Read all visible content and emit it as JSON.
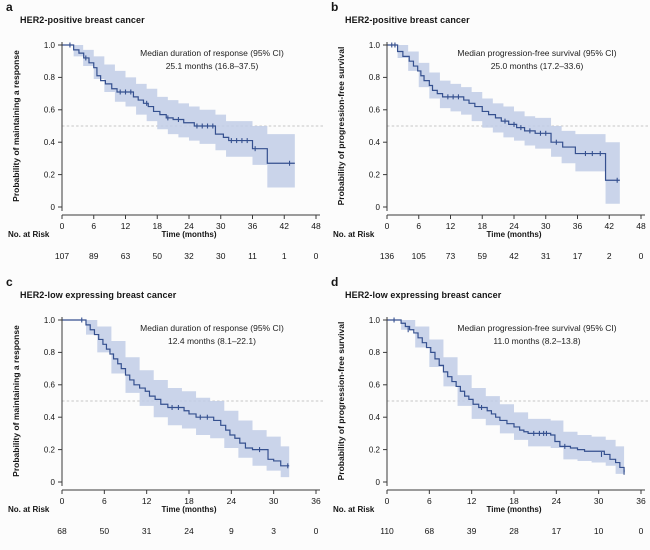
{
  "colors": {
    "line": "#35508f",
    "band": "#c1cde6",
    "dashed": "#c6c6c6",
    "axis": "#3a3a3a",
    "text": "#151515"
  },
  "chart_data": [
    {
      "type": "line",
      "letter": "a",
      "title": "HER2-positive breast cancer",
      "annotation_line1": "Median duration of response (95% CI)",
      "annotation_line2": "25.1 months (16.8–37.5)",
      "ylabel": "Probability of maintaining a response",
      "xlabel": "Time (months)",
      "risk_header": "No. at Risk",
      "y_ticks": [
        "1.0",
        "0.8",
        "0.6",
        "0.4",
        "0.2",
        "0"
      ],
      "ylim": [
        0,
        1.0
      ],
      "x_ticks": [
        0,
        6,
        12,
        18,
        24,
        30,
        36,
        42,
        48
      ],
      "xlim": [
        0,
        48
      ],
      "reference_line": 0.5,
      "at_risk": [
        107,
        89,
        63,
        50,
        32,
        30,
        11,
        1,
        0
      ],
      "steps": [
        [
          0,
          1.0
        ],
        [
          2.2,
          0.97
        ],
        [
          3.2,
          0.95
        ],
        [
          4.1,
          0.92
        ],
        [
          5.1,
          0.89
        ],
        [
          6.0,
          0.86
        ],
        [
          6.6,
          0.81
        ],
        [
          7.3,
          0.78
        ],
        [
          8.2,
          0.76
        ],
        [
          9.4,
          0.73
        ],
        [
          10.4,
          0.71
        ],
        [
          13.5,
          0.68
        ],
        [
          14.4,
          0.66
        ],
        [
          15.4,
          0.64
        ],
        [
          16.3,
          0.62
        ],
        [
          17.3,
          0.59
        ],
        [
          18.5,
          0.57
        ],
        [
          19.7,
          0.55
        ],
        [
          21.0,
          0.54
        ],
        [
          23.0,
          0.52
        ],
        [
          25.0,
          0.5
        ],
        [
          29.0,
          0.45
        ],
        [
          30.5,
          0.43
        ],
        [
          31.5,
          0.41
        ],
        [
          36.0,
          0.36
        ],
        [
          38.8,
          0.27
        ],
        [
          44.0,
          0.27
        ]
      ],
      "censors": [
        [
          1.5,
          1.0
        ],
        [
          4.5,
          0.92
        ],
        [
          11,
          0.71
        ],
        [
          12,
          0.71
        ],
        [
          13,
          0.71
        ],
        [
          16,
          0.64
        ],
        [
          20,
          0.55
        ],
        [
          22,
          0.54
        ],
        [
          25.5,
          0.5
        ],
        [
          26.5,
          0.5
        ],
        [
          27.5,
          0.5
        ],
        [
          28.5,
          0.5
        ],
        [
          32,
          0.41
        ],
        [
          33,
          0.41
        ],
        [
          34,
          0.41
        ],
        [
          35,
          0.41
        ],
        [
          36.5,
          0.36
        ],
        [
          43,
          0.27
        ]
      ],
      "ci": [
        [
          0,
          1.0,
          1.0
        ],
        [
          2.2,
          0.93,
          1.0
        ],
        [
          4,
          0.87,
          0.97
        ],
        [
          6,
          0.79,
          0.93
        ],
        [
          8,
          0.71,
          0.88
        ],
        [
          10,
          0.65,
          0.84
        ],
        [
          12,
          0.62,
          0.8
        ],
        [
          14,
          0.57,
          0.76
        ],
        [
          16,
          0.53,
          0.73
        ],
        [
          18,
          0.48,
          0.68
        ],
        [
          20,
          0.45,
          0.66
        ],
        [
          22,
          0.43,
          0.64
        ],
        [
          24,
          0.41,
          0.62
        ],
        [
          26,
          0.39,
          0.6
        ],
        [
          29,
          0.35,
          0.57
        ],
        [
          31,
          0.31,
          0.53
        ],
        [
          36,
          0.26,
          0.5
        ],
        [
          38.8,
          0.12,
          0.45
        ],
        [
          44,
          0.12,
          0.45
        ]
      ]
    },
    {
      "type": "line",
      "letter": "b",
      "title": "HER2-positive breast cancer",
      "annotation_line1": "Median progression-free survival (95% CI)",
      "annotation_line2": "25.0 months (17.2–33.6)",
      "ylabel": "Probability of progression-free survival",
      "xlabel": "Time (months)",
      "risk_header": "No. at Risk",
      "y_ticks": [
        "1.0",
        "0.8",
        "0.6",
        "0.4",
        "0.2",
        "0"
      ],
      "ylim": [
        0,
        1.0
      ],
      "x_ticks": [
        0,
        6,
        12,
        18,
        24,
        30,
        36,
        42,
        48
      ],
      "xlim": [
        0,
        48
      ],
      "reference_line": 0.5,
      "at_risk": [
        136,
        105,
        73,
        59,
        42,
        31,
        17,
        2,
        0
      ],
      "steps": [
        [
          0,
          1.0
        ],
        [
          2.0,
          0.96
        ],
        [
          3.0,
          0.93
        ],
        [
          4.2,
          0.9
        ],
        [
          5.0,
          0.87
        ],
        [
          5.8,
          0.84
        ],
        [
          6.4,
          0.81
        ],
        [
          7.0,
          0.78
        ],
        [
          8.0,
          0.75
        ],
        [
          8.6,
          0.72
        ],
        [
          9.5,
          0.7
        ],
        [
          10.5,
          0.68
        ],
        [
          14.5,
          0.66
        ],
        [
          15.5,
          0.64
        ],
        [
          16.6,
          0.62
        ],
        [
          18.0,
          0.59
        ],
        [
          19.2,
          0.57
        ],
        [
          20.5,
          0.55
        ],
        [
          21.6,
          0.53
        ],
        [
          23.0,
          0.51
        ],
        [
          24.5,
          0.49
        ],
        [
          26.0,
          0.47
        ],
        [
          28.0,
          0.455
        ],
        [
          31.0,
          0.4
        ],
        [
          33.2,
          0.37
        ],
        [
          35.6,
          0.33
        ],
        [
          41.3,
          0.165
        ],
        [
          44.0,
          0.165
        ]
      ],
      "censors": [
        [
          0.9,
          1.0
        ],
        [
          1.5,
          1.0
        ],
        [
          11.5,
          0.68
        ],
        [
          12.5,
          0.68
        ],
        [
          13.5,
          0.68
        ],
        [
          22.3,
          0.53
        ],
        [
          24.0,
          0.51
        ],
        [
          25.3,
          0.49
        ],
        [
          27.0,
          0.47
        ],
        [
          29.0,
          0.455
        ],
        [
          30.0,
          0.455
        ],
        [
          32.0,
          0.4
        ],
        [
          37.5,
          0.33
        ],
        [
          38.8,
          0.33
        ],
        [
          40.3,
          0.33
        ],
        [
          43.5,
          0.165
        ]
      ],
      "ci": [
        [
          0,
          1.0,
          1.0
        ],
        [
          2,
          0.92,
          1.0
        ],
        [
          4,
          0.84,
          0.96
        ],
        [
          6,
          0.74,
          0.89
        ],
        [
          8,
          0.67,
          0.83
        ],
        [
          10,
          0.61,
          0.78
        ],
        [
          12,
          0.59,
          0.76
        ],
        [
          14,
          0.57,
          0.74
        ],
        [
          16,
          0.53,
          0.71
        ],
        [
          18,
          0.49,
          0.67
        ],
        [
          20,
          0.46,
          0.64
        ],
        [
          22,
          0.43,
          0.62
        ],
        [
          24,
          0.41,
          0.59
        ],
        [
          26,
          0.38,
          0.56
        ],
        [
          28,
          0.36,
          0.55
        ],
        [
          31,
          0.31,
          0.5
        ],
        [
          33,
          0.27,
          0.47
        ],
        [
          35.6,
          0.22,
          0.45
        ],
        [
          41.3,
          0.02,
          0.4
        ],
        [
          44,
          0.02,
          0.4
        ]
      ]
    },
    {
      "type": "line",
      "letter": "c",
      "title": "HER2-low expressing breast cancer",
      "annotation_line1": "Median duration of response (95% CI)",
      "annotation_line2": "12.4 months (8.1–22.1)",
      "ylabel": "Probability of maintaining a response",
      "xlabel": "Time (months)",
      "risk_header": "No. at Risk",
      "y_ticks": [
        "1.0",
        "0.8",
        "0.6",
        "0.4",
        "0.2",
        "0"
      ],
      "ylim": [
        0,
        1.0
      ],
      "x_ticks": [
        0,
        6,
        12,
        18,
        24,
        30,
        36
      ],
      "xlim": [
        0,
        36
      ],
      "reference_line": 0.5,
      "at_risk": [
        68,
        50,
        31,
        24,
        9,
        3,
        0
      ],
      "steps": [
        [
          0,
          1.0
        ],
        [
          3.4,
          0.97
        ],
        [
          4.0,
          0.94
        ],
        [
          4.6,
          0.91
        ],
        [
          5.2,
          0.88
        ],
        [
          5.8,
          0.85
        ],
        [
          6.3,
          0.82
        ],
        [
          6.8,
          0.79
        ],
        [
          7.3,
          0.76
        ],
        [
          7.9,
          0.73
        ],
        [
          8.4,
          0.7
        ],
        [
          9.0,
          0.66
        ],
        [
          9.6,
          0.63
        ],
        [
          10.2,
          0.6
        ],
        [
          11.0,
          0.58
        ],
        [
          11.8,
          0.56
        ],
        [
          12.4,
          0.53
        ],
        [
          13.2,
          0.51
        ],
        [
          14.0,
          0.48
        ],
        [
          15.0,
          0.46
        ],
        [
          17.3,
          0.44
        ],
        [
          18.0,
          0.42
        ],
        [
          19.0,
          0.4
        ],
        [
          21.5,
          0.38
        ],
        [
          22.5,
          0.35
        ],
        [
          23.2,
          0.32
        ],
        [
          23.8,
          0.29
        ],
        [
          24.5,
          0.27
        ],
        [
          25.2,
          0.24
        ],
        [
          26.0,
          0.21
        ],
        [
          27.0,
          0.2
        ],
        [
          29.2,
          0.14
        ],
        [
          30.0,
          0.13
        ],
        [
          31.0,
          0.1
        ],
        [
          32.2,
          0.1
        ]
      ],
      "censors": [
        [
          2.8,
          1.0
        ],
        [
          15.6,
          0.46
        ],
        [
          16.5,
          0.46
        ],
        [
          19.6,
          0.4
        ],
        [
          20.6,
          0.4
        ],
        [
          28.0,
          0.2
        ],
        [
          32.0,
          0.1
        ]
      ],
      "ci": [
        [
          0,
          1.0,
          1.0
        ],
        [
          3.4,
          0.91,
          1.0
        ],
        [
          5,
          0.8,
          0.96
        ],
        [
          7,
          0.67,
          0.87
        ],
        [
          9,
          0.55,
          0.77
        ],
        [
          11,
          0.47,
          0.69
        ],
        [
          13,
          0.4,
          0.63
        ],
        [
          15,
          0.35,
          0.58
        ],
        [
          17,
          0.33,
          0.56
        ],
        [
          19,
          0.29,
          0.52
        ],
        [
          21,
          0.27,
          0.5
        ],
        [
          23,
          0.21,
          0.44
        ],
        [
          25,
          0.15,
          0.38
        ],
        [
          27,
          0.1,
          0.32
        ],
        [
          29,
          0.07,
          0.28
        ],
        [
          31,
          0.03,
          0.22
        ],
        [
          32.2,
          0.03,
          0.22
        ]
      ]
    },
    {
      "type": "line",
      "letter": "d",
      "title": "HER2-low expressing breast cancer",
      "annotation_line1": "Median progression-free survival (95% CI)",
      "annotation_line2": "11.0 months (8.2–13.8)",
      "ylabel": "Probability of progression-free survival",
      "xlabel": "Time (months)",
      "risk_header": "No. at Risk",
      "y_ticks": [
        "1.0",
        "0.8",
        "0.6",
        "0.4",
        "0.2",
        "0"
      ],
      "ylim": [
        0,
        1.0
      ],
      "x_ticks": [
        0,
        6,
        12,
        18,
        24,
        30,
        36
      ],
      "xlim": [
        0,
        36
      ],
      "reference_line": 0.5,
      "at_risk": [
        110,
        68,
        39,
        28,
        17,
        10,
        0
      ],
      "steps": [
        [
          0,
          1.0
        ],
        [
          2.0,
          0.98
        ],
        [
          2.6,
          0.96
        ],
        [
          3.2,
          0.94
        ],
        [
          3.8,
          0.92
        ],
        [
          4.4,
          0.89
        ],
        [
          5.0,
          0.86
        ],
        [
          5.6,
          0.83
        ],
        [
          6.2,
          0.8
        ],
        [
          6.8,
          0.76
        ],
        [
          7.4,
          0.72
        ],
        [
          8.0,
          0.68
        ],
        [
          8.6,
          0.65
        ],
        [
          9.2,
          0.62
        ],
        [
          9.8,
          0.59
        ],
        [
          10.4,
          0.56
        ],
        [
          11.0,
          0.53
        ],
        [
          11.6,
          0.51
        ],
        [
          12.2,
          0.48
        ],
        [
          13.0,
          0.46
        ],
        [
          14.2,
          0.44
        ],
        [
          14.8,
          0.42
        ],
        [
          15.4,
          0.4
        ],
        [
          16.0,
          0.38
        ],
        [
          17.0,
          0.36
        ],
        [
          18.0,
          0.34
        ],
        [
          18.8,
          0.32
        ],
        [
          19.4,
          0.31
        ],
        [
          20.0,
          0.3
        ],
        [
          23.2,
          0.29
        ],
        [
          23.8,
          0.25
        ],
        [
          24.5,
          0.22
        ],
        [
          26.0,
          0.21
        ],
        [
          27.0,
          0.2
        ],
        [
          28.0,
          0.19
        ],
        [
          30.8,
          0.17
        ],
        [
          31.6,
          0.14
        ],
        [
          32.4,
          0.12
        ],
        [
          33.0,
          0.09
        ],
        [
          33.6,
          0.06
        ]
      ],
      "censors": [
        [
          1.0,
          1.0
        ],
        [
          3.0,
          0.94
        ],
        [
          13.4,
          0.46
        ],
        [
          20.8,
          0.3
        ],
        [
          21.6,
          0.3
        ],
        [
          22.2,
          0.3
        ],
        [
          22.6,
          0.3
        ],
        [
          25.2,
          0.22
        ],
        [
          30.4,
          0.17
        ],
        [
          33.6,
          0.06
        ]
      ],
      "ci": [
        [
          0,
          1.0,
          1.0
        ],
        [
          2,
          0.94,
          1.0
        ],
        [
          4,
          0.83,
          0.96
        ],
        [
          6,
          0.71,
          0.88
        ],
        [
          8,
          0.59,
          0.77
        ],
        [
          10,
          0.47,
          0.66
        ],
        [
          12,
          0.39,
          0.58
        ],
        [
          14,
          0.35,
          0.53
        ],
        [
          16,
          0.3,
          0.48
        ],
        [
          18,
          0.26,
          0.43
        ],
        [
          20,
          0.22,
          0.39
        ],
        [
          23.2,
          0.21,
          0.38
        ],
        [
          25,
          0.14,
          0.31
        ],
        [
          27,
          0.13,
          0.29
        ],
        [
          29,
          0.12,
          0.28
        ],
        [
          31,
          0.1,
          0.26
        ],
        [
          32.4,
          0.05,
          0.22
        ],
        [
          33.6,
          0.01,
          0.18
        ]
      ]
    }
  ]
}
